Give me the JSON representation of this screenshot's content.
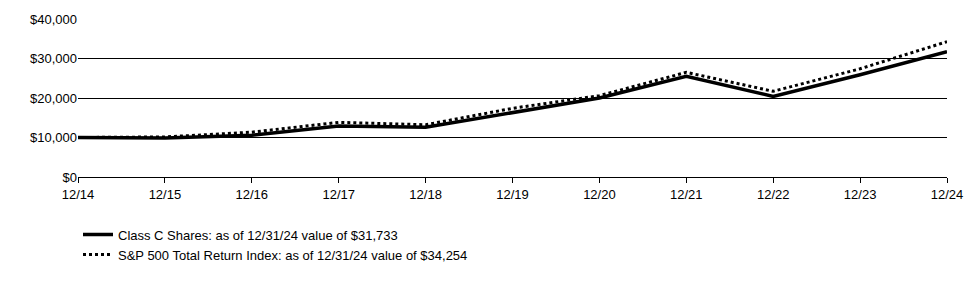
{
  "chart_data": {
    "type": "line",
    "categories": [
      "12/14",
      "12/15",
      "12/16",
      "12/17",
      "12/18",
      "12/19",
      "12/20",
      "12/21",
      "12/22",
      "12/23",
      "12/24"
    ],
    "series": [
      {
        "name": "Class C Shares: as of 12/31/24 value of $31,733",
        "color": "#000000",
        "line_style": "solid",
        "values": [
          10000,
          9900,
          10600,
          12900,
          12600,
          16300,
          20000,
          25500,
          20400,
          25900,
          31733
        ]
      },
      {
        "name": "S&P 500 Total Return Index: as of 12/31/24 value of $34,254",
        "color": "#000000",
        "line_style": "dot",
        "values": [
          10000,
          10138,
          11351,
          13829,
          13223,
          17386,
          20585,
          26494,
          21696,
          27399,
          34254
        ]
      }
    ],
    "ylim": [
      0,
      40000
    ],
    "yticks": [
      {
        "value": 0,
        "label": "$0"
      },
      {
        "value": 10000,
        "label": "$10,000"
      },
      {
        "value": 20000,
        "label": "$20,000"
      },
      {
        "value": 30000,
        "label": "$30,000"
      },
      {
        "value": 40000,
        "label": "$40,000"
      }
    ],
    "grid": true,
    "legend": "bottom"
  }
}
